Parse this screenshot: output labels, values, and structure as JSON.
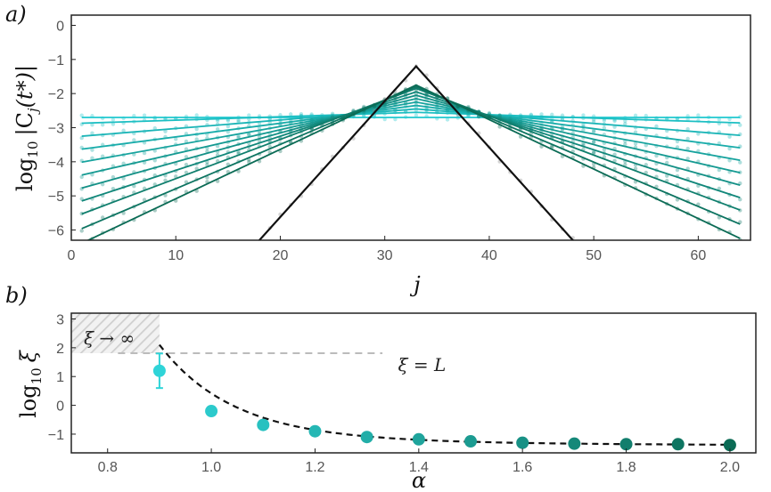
{
  "chart_data": [
    {
      "panel": "a)",
      "type": "line",
      "xlabel": "j",
      "ylabel": "log10 |Cj(t*)|",
      "ylabel_parts": {
        "log": "log",
        "base": "10",
        "body": "|C",
        "sub": "j",
        "arg": "(t*)|"
      },
      "xlim": [
        0,
        65
      ],
      "ylim": [
        -6.3,
        0.3
      ],
      "xticks": [
        "0",
        "10",
        "20",
        "30",
        "40",
        "50",
        "60"
      ],
      "yticks": [
        "0",
        "−1",
        "−2",
        "−3",
        "−4",
        "−5",
        "−6"
      ],
      "center_j": 33,
      "x_min_j": 1,
      "x_max_j": 64,
      "colors": {
        "light": "#1fc8cf",
        "dark": "#0b6b55",
        "steep": "#111111"
      },
      "series": [
        {
          "peak": -2.7,
          "slope": 0.0
        },
        {
          "peak": -2.55,
          "slope": 0.01
        },
        {
          "peak": -2.45,
          "slope": 0.025
        },
        {
          "peak": -2.35,
          "slope": 0.04
        },
        {
          "peak": -2.25,
          "slope": 0.055
        },
        {
          "peak": -2.15,
          "slope": 0.07
        },
        {
          "peak": -2.05,
          "slope": 0.085
        },
        {
          "peak": -1.95,
          "slope": 0.1
        },
        {
          "peak": -1.85,
          "slope": 0.115
        },
        {
          "peak": -1.8,
          "slope": 0.13
        },
        {
          "peak": -1.75,
          "slope": 0.145
        },
        {
          "peak": -1.2,
          "slope": 0.34,
          "steep": true
        }
      ]
    },
    {
      "panel": "b)",
      "type": "scatter",
      "xlabel": "α",
      "ylabel": "log10 ξ",
      "ylabel_parts": {
        "log": "log",
        "base": "10",
        "body": "ξ"
      },
      "xlim": [
        0.73,
        2.05
      ],
      "ylim": [
        -1.65,
        3.2
      ],
      "xticks": [
        "0.8",
        "1.0",
        "1.2",
        "1.4",
        "1.6",
        "1.8",
        "2.0"
      ],
      "yticks": [
        "3",
        "2",
        "1",
        "0",
        "−1"
      ],
      "alpha": [
        0.9,
        1.0,
        1.1,
        1.2,
        1.3,
        1.4,
        1.5,
        1.6,
        1.7,
        1.8,
        1.9,
        2.0
      ],
      "log10_xi": [
        1.2,
        -0.2,
        -0.68,
        -0.9,
        -1.1,
        -1.18,
        -1.25,
        -1.3,
        -1.33,
        -1.35,
        -1.35,
        -1.38
      ],
      "errors": [
        0.6,
        0.08,
        0.05,
        0.15,
        0.06,
        0.05,
        0.05,
        0.05,
        0.05,
        0.05,
        0.05,
        0.05
      ],
      "fit_curve": {
        "style": "dashed",
        "color": "#111111"
      },
      "threshold_line": {
        "y": 1.81,
        "label": "ξ = L",
        "color": "#bbbbbb"
      },
      "hatched_region": {
        "x": [
          0.73,
          0.9
        ],
        "y": [
          1.81,
          3.2
        ],
        "label": "ξ → ∞"
      },
      "colors": {
        "light": "#2fd4d8",
        "dark": "#0b6b55"
      }
    }
  ]
}
